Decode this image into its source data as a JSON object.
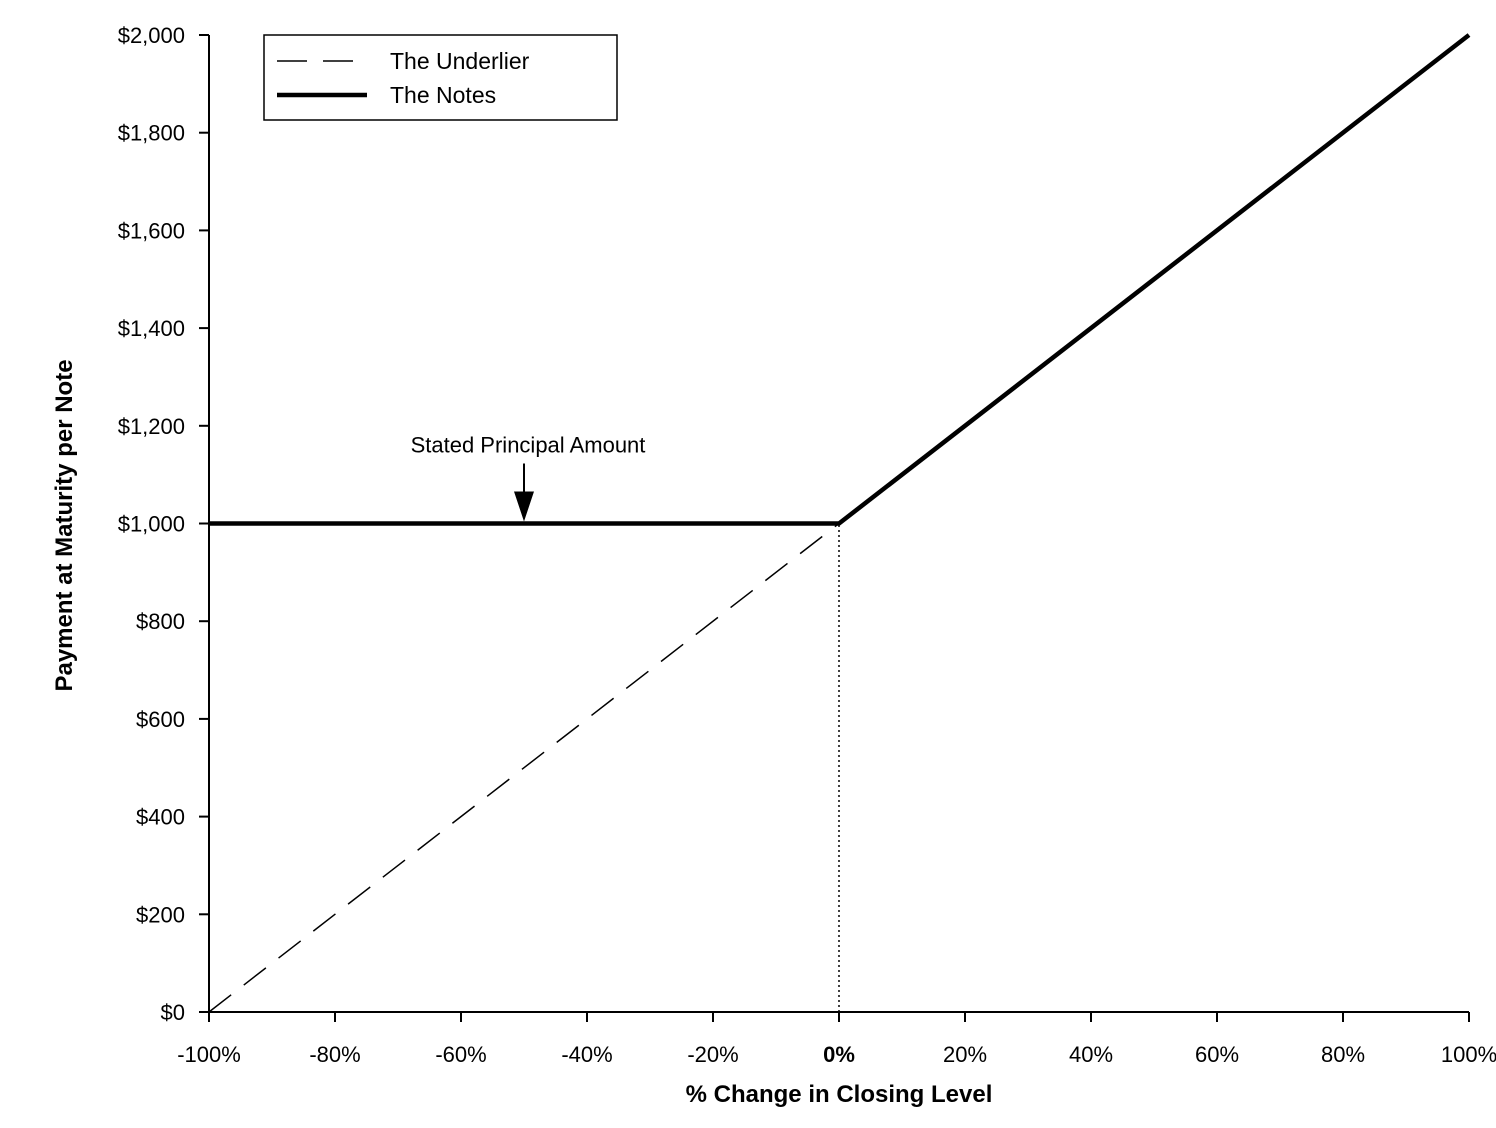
{
  "chart_data": {
    "type": "line",
    "xlabel": "% Change in Closing Level",
    "ylabel": "Payment at Maturity per Note",
    "xlim": [
      -100,
      100
    ],
    "ylim": [
      0,
      2000
    ],
    "x_ticks": [
      -100,
      -80,
      -60,
      -40,
      -20,
      0,
      20,
      40,
      60,
      80,
      100
    ],
    "x_tick_labels": [
      "-100%",
      "-80%",
      "-60%",
      "-40%",
      "-20%",
      "0%",
      "20%",
      "40%",
      "60%",
      "80%",
      "100%"
    ],
    "y_ticks": [
      0,
      200,
      400,
      600,
      800,
      1000,
      1200,
      1400,
      1600,
      1800,
      2000
    ],
    "y_tick_labels": [
      "$0",
      "$200",
      "$400",
      "$600",
      "$800",
      "$1,000",
      "$1,200",
      "$1,400",
      "$1,600",
      "$1,800",
      "$2,000"
    ],
    "grid": false,
    "legend_position": "top-left",
    "series": [
      {
        "name": "The Underlier",
        "style": "dashed",
        "x": [
          -100,
          0
        ],
        "y": [
          0,
          1000
        ]
      },
      {
        "name": "The Notes",
        "style": "solid-thick",
        "x": [
          -100,
          0,
          100
        ],
        "y": [
          1000,
          1000,
          2000
        ]
      }
    ],
    "reference_lines": [
      {
        "orientation": "vertical",
        "x": 0,
        "y_from": 0,
        "y_to": 1000,
        "style": "dotted"
      }
    ],
    "annotations": [
      {
        "text": "Stated Principal Amount",
        "x": -50,
        "y": 1000,
        "arrow": "down"
      }
    ],
    "colors": {
      "line": "#000000",
      "background": "#ffffff"
    }
  }
}
